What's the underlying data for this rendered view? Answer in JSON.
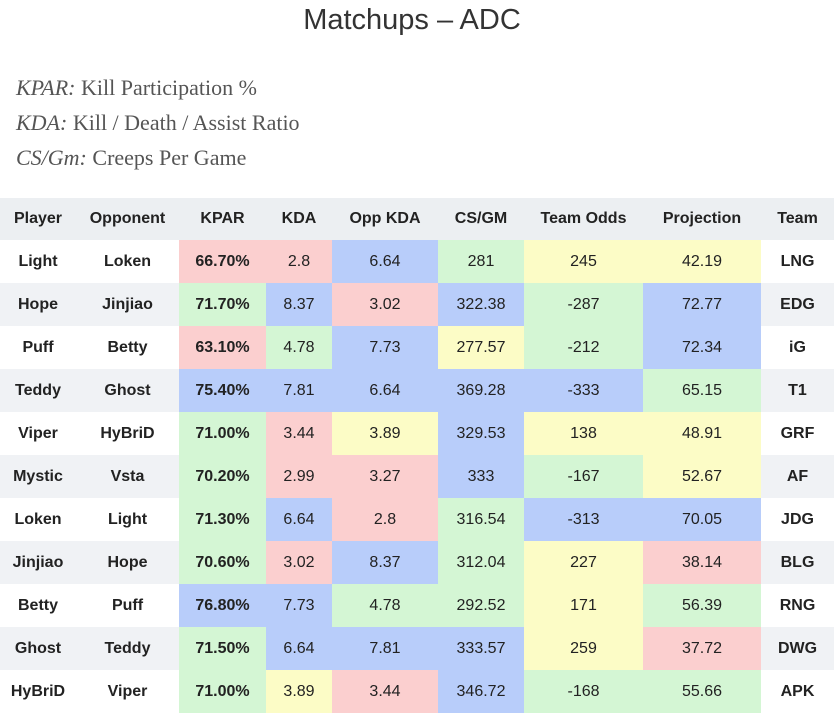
{
  "title": "Matchups – ADC",
  "legend": [
    {
      "abbr": "KPAR:",
      "desc": " Kill Participation %"
    },
    {
      "abbr": "KDA:",
      "desc": " Kill / Death / Assist Ratio"
    },
    {
      "abbr": "CS/Gm:",
      "desc": " Creeps Per Game"
    }
  ],
  "colors": {
    "green": "#d4f6d4",
    "red": "#fbcfcf",
    "blue": "#b8cdfa",
    "yellow": "#fcfcc6"
  },
  "columns": [
    "Player",
    "Opponent",
    "KPAR",
    "KDA",
    "Opp KDA",
    "CS/GM",
    "Team Odds",
    "Projection",
    "Team"
  ],
  "rows": [
    {
      "player": "Light",
      "opponent": "Loken",
      "kpar": "66.70%",
      "kda": "2.8",
      "opp_kda": "6.64",
      "cs": "281",
      "odds": "245",
      "proj": "42.19",
      "team": "LNG",
      "colors": [
        "r",
        "r",
        "b",
        "g",
        "y",
        "y"
      ]
    },
    {
      "player": "Hope",
      "opponent": "Jinjiao",
      "kpar": "71.70%",
      "kda": "8.37",
      "opp_kda": "3.02",
      "cs": "322.38",
      "odds": "-287",
      "proj": "72.77",
      "team": "EDG",
      "colors": [
        "g",
        "b",
        "r",
        "b",
        "g",
        "b"
      ]
    },
    {
      "player": "Puff",
      "opponent": "Betty",
      "kpar": "63.10%",
      "kda": "4.78",
      "opp_kda": "7.73",
      "cs": "277.57",
      "odds": "-212",
      "proj": "72.34",
      "team": "iG",
      "colors": [
        "r",
        "g",
        "b",
        "y",
        "g",
        "b"
      ]
    },
    {
      "player": "Teddy",
      "opponent": "Ghost",
      "kpar": "75.40%",
      "kda": "7.81",
      "opp_kda": "6.64",
      "cs": "369.28",
      "odds": "-333",
      "proj": "65.15",
      "team": "T1",
      "colors": [
        "b",
        "b",
        "b",
        "b",
        "b",
        "g"
      ]
    },
    {
      "player": "Viper",
      "opponent": "HyBriD",
      "kpar": "71.00%",
      "kda": "3.44",
      "opp_kda": "3.89",
      "cs": "329.53",
      "odds": "138",
      "proj": "48.91",
      "team": "GRF",
      "colors": [
        "g",
        "r",
        "y",
        "b",
        "y",
        "y"
      ]
    },
    {
      "player": "Mystic",
      "opponent": "Vsta",
      "kpar": "70.20%",
      "kda": "2.99",
      "opp_kda": "3.27",
      "cs": "333",
      "odds": "-167",
      "proj": "52.67",
      "team": "AF",
      "colors": [
        "g",
        "r",
        "r",
        "b",
        "g",
        "y"
      ]
    },
    {
      "player": "Loken",
      "opponent": "Light",
      "kpar": "71.30%",
      "kda": "6.64",
      "opp_kda": "2.8",
      "cs": "316.54",
      "odds": "-313",
      "proj": "70.05",
      "team": "JDG",
      "colors": [
        "g",
        "b",
        "r",
        "g",
        "b",
        "b"
      ]
    },
    {
      "player": "Jinjiao",
      "opponent": "Hope",
      "kpar": "70.60%",
      "kda": "3.02",
      "opp_kda": "8.37",
      "cs": "312.04",
      "odds": "227",
      "proj": "38.14",
      "team": "BLG",
      "colors": [
        "g",
        "r",
        "b",
        "g",
        "y",
        "r"
      ]
    },
    {
      "player": "Betty",
      "opponent": "Puff",
      "kpar": "76.80%",
      "kda": "7.73",
      "opp_kda": "4.78",
      "cs": "292.52",
      "odds": "171",
      "proj": "56.39",
      "team": "RNG",
      "colors": [
        "b",
        "b",
        "g",
        "g",
        "y",
        "g"
      ]
    },
    {
      "player": "Ghost",
      "opponent": "Teddy",
      "kpar": "71.50%",
      "kda": "6.64",
      "opp_kda": "7.81",
      "cs": "333.57",
      "odds": "259",
      "proj": "37.72",
      "team": "DWG",
      "colors": [
        "g",
        "b",
        "b",
        "b",
        "y",
        "r"
      ]
    },
    {
      "player": "HyBriD",
      "opponent": "Viper",
      "kpar": "71.00%",
      "kda": "3.89",
      "opp_kda": "3.44",
      "cs": "346.72",
      "odds": "-168",
      "proj": "55.66",
      "team": "APK",
      "colors": [
        "g",
        "y",
        "r",
        "b",
        "g",
        "g"
      ]
    }
  ]
}
